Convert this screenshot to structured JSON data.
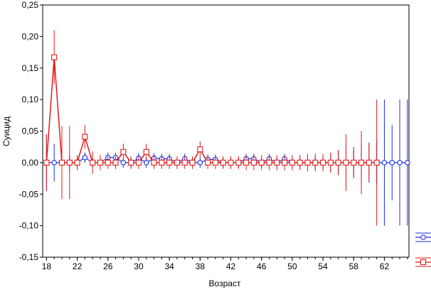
{
  "chart_data": {
    "type": "line",
    "title": "",
    "xlabel": "Возраст",
    "ylabel": "Суицид",
    "xlim": [
      17.5,
      65.2
    ],
    "ylim": [
      -0.15,
      0.25
    ],
    "grid": false,
    "legend": "right",
    "x_ticks": [
      "18",
      "22",
      "26",
      "30",
      "34",
      "38",
      "42",
      "46",
      "50",
      "54",
      "58",
      "62"
    ],
    "y_ticks": [
      "-0,15",
      "-0,10",
      "-0,05",
      "0,00",
      "0,05",
      "0,10",
      "0,15",
      "0,20",
      "0,25"
    ],
    "series": [
      {
        "marker": "circle",
        "color": "#1a2ee0",
        "points": [
          {
            "x": 18,
            "y": 0.0,
            "lo": -0.045,
            "hi": 0.045
          },
          {
            "x": 19,
            "y": 0.0,
            "lo": -0.03,
            "hi": 0.03
          },
          {
            "x": 20,
            "y": 0.0,
            "lo": -0.012,
            "hi": 0.012
          },
          {
            "x": 21,
            "y": 0.0,
            "lo": -0.012,
            "hi": 0.012
          },
          {
            "x": 22,
            "y": 0.0,
            "lo": -0.01,
            "hi": 0.01
          },
          {
            "x": 23,
            "y": 0.008,
            "lo": 0.0,
            "hi": 0.016
          },
          {
            "x": 24,
            "y": 0.0,
            "lo": -0.008,
            "hi": 0.008
          },
          {
            "x": 25,
            "y": 0.0,
            "lo": -0.008,
            "hi": 0.008
          },
          {
            "x": 26,
            "y": 0.008,
            "lo": 0.0,
            "hi": 0.016
          },
          {
            "x": 27,
            "y": 0.008,
            "lo": 0.0,
            "hi": 0.016
          },
          {
            "x": 28,
            "y": 0.0,
            "lo": -0.008,
            "hi": 0.008
          },
          {
            "x": 29,
            "y": 0.0,
            "lo": -0.008,
            "hi": 0.008
          },
          {
            "x": 30,
            "y": 0.007,
            "lo": -0.001,
            "hi": 0.015
          },
          {
            "x": 31,
            "y": 0.0,
            "lo": -0.008,
            "hi": 0.008
          },
          {
            "x": 32,
            "y": 0.007,
            "lo": -0.001,
            "hi": 0.015
          },
          {
            "x": 33,
            "y": 0.006,
            "lo": -0.002,
            "hi": 0.014
          },
          {
            "x": 34,
            "y": 0.006,
            "lo": -0.002,
            "hi": 0.014
          },
          {
            "x": 35,
            "y": 0.0,
            "lo": -0.008,
            "hi": 0.008
          },
          {
            "x": 36,
            "y": 0.006,
            "lo": -0.002,
            "hi": 0.014
          },
          {
            "x": 37,
            "y": 0.0,
            "lo": -0.008,
            "hi": 0.008
          },
          {
            "x": 38,
            "y": 0.0,
            "lo": -0.008,
            "hi": 0.008
          },
          {
            "x": 39,
            "y": 0.005,
            "lo": -0.003,
            "hi": 0.013
          },
          {
            "x": 40,
            "y": 0.005,
            "lo": -0.003,
            "hi": 0.013
          },
          {
            "x": 41,
            "y": 0.0,
            "lo": -0.008,
            "hi": 0.008
          },
          {
            "x": 42,
            "y": 0.0,
            "lo": -0.008,
            "hi": 0.008
          },
          {
            "x": 43,
            "y": 0.0,
            "lo": -0.008,
            "hi": 0.008
          },
          {
            "x": 44,
            "y": 0.006,
            "lo": -0.002,
            "hi": 0.014
          },
          {
            "x": 45,
            "y": 0.006,
            "lo": -0.002,
            "hi": 0.014
          },
          {
            "x": 46,
            "y": 0.0,
            "lo": -0.008,
            "hi": 0.008
          },
          {
            "x": 47,
            "y": 0.006,
            "lo": -0.002,
            "hi": 0.014
          },
          {
            "x": 48,
            "y": 0.0,
            "lo": -0.008,
            "hi": 0.008
          },
          {
            "x": 49,
            "y": 0.006,
            "lo": -0.002,
            "hi": 0.014
          },
          {
            "x": 50,
            "y": 0.0,
            "lo": -0.008,
            "hi": 0.008
          },
          {
            "x": 51,
            "y": 0.0,
            "lo": -0.008,
            "hi": 0.008
          },
          {
            "x": 52,
            "y": 0.0,
            "lo": -0.008,
            "hi": 0.008
          },
          {
            "x": 53,
            "y": 0.0,
            "lo": -0.01,
            "hi": 0.01
          },
          {
            "x": 54,
            "y": 0.0,
            "lo": -0.01,
            "hi": 0.01
          },
          {
            "x": 55,
            "y": 0.0,
            "lo": -0.015,
            "hi": 0.015
          },
          {
            "x": 56,
            "y": 0.0,
            "lo": -0.02,
            "hi": 0.02
          },
          {
            "x": 57,
            "y": 0.0,
            "lo": -0.025,
            "hi": 0.025
          },
          {
            "x": 58,
            "y": 0.0,
            "lo": -0.025,
            "hi": 0.025
          },
          {
            "x": 59,
            "y": 0.0,
            "lo": -0.03,
            "hi": 0.03
          },
          {
            "x": 60,
            "y": 0.0,
            "lo": -0.032,
            "hi": 0.032
          },
          {
            "x": 61,
            "y": 0.0,
            "lo": -0.035,
            "hi": 0.035
          },
          {
            "x": 62,
            "y": 0.0,
            "lo": -0.1,
            "hi": 0.1
          },
          {
            "x": 63,
            "y": 0.0,
            "lo": -0.06,
            "hi": 0.06
          },
          {
            "x": 64,
            "y": 0.0,
            "lo": -0.1,
            "hi": 0.1
          },
          {
            "x": 65,
            "y": 0.0,
            "lo": -0.1,
            "hi": 0.1
          }
        ]
      },
      {
        "marker": "square",
        "color": "#e01a1a",
        "points": [
          {
            "x": 18,
            "y": 0.0,
            "lo": -0.045,
            "hi": 0.045
          },
          {
            "x": 19,
            "y": 0.167,
            "lo": 0.125,
            "hi": 0.21
          },
          {
            "x": 20,
            "y": 0.0,
            "lo": -0.058,
            "hi": 0.058
          },
          {
            "x": 21,
            "y": 0.0,
            "lo": -0.058,
            "hi": 0.058
          },
          {
            "x": 22,
            "y": 0.0,
            "lo": -0.012,
            "hi": 0.012
          },
          {
            "x": 23,
            "y": 0.041,
            "lo": 0.022,
            "hi": 0.06
          },
          {
            "x": 24,
            "y": 0.0,
            "lo": -0.018,
            "hi": 0.018
          },
          {
            "x": 25,
            "y": 0.0,
            "lo": -0.012,
            "hi": 0.012
          },
          {
            "x": 26,
            "y": 0.0,
            "lo": -0.01,
            "hi": 0.01
          },
          {
            "x": 27,
            "y": 0.0,
            "lo": -0.01,
            "hi": 0.01
          },
          {
            "x": 28,
            "y": 0.017,
            "lo": 0.004,
            "hi": 0.03
          },
          {
            "x": 29,
            "y": 0.0,
            "lo": -0.01,
            "hi": 0.01
          },
          {
            "x": 30,
            "y": 0.0,
            "lo": -0.01,
            "hi": 0.01
          },
          {
            "x": 31,
            "y": 0.017,
            "lo": 0.004,
            "hi": 0.03
          },
          {
            "x": 32,
            "y": 0.0,
            "lo": -0.01,
            "hi": 0.01
          },
          {
            "x": 33,
            "y": 0.0,
            "lo": -0.01,
            "hi": 0.01
          },
          {
            "x": 34,
            "y": 0.0,
            "lo": -0.01,
            "hi": 0.01
          },
          {
            "x": 35,
            "y": 0.0,
            "lo": -0.01,
            "hi": 0.01
          },
          {
            "x": 36,
            "y": 0.0,
            "lo": -0.01,
            "hi": 0.01
          },
          {
            "x": 37,
            "y": 0.0,
            "lo": -0.01,
            "hi": 0.01
          },
          {
            "x": 38,
            "y": 0.021,
            "lo": 0.008,
            "hi": 0.034
          },
          {
            "x": 39,
            "y": 0.0,
            "lo": -0.01,
            "hi": 0.01
          },
          {
            "x": 40,
            "y": 0.0,
            "lo": -0.01,
            "hi": 0.01
          },
          {
            "x": 41,
            "y": 0.0,
            "lo": -0.01,
            "hi": 0.01
          },
          {
            "x": 42,
            "y": 0.0,
            "lo": -0.01,
            "hi": 0.01
          },
          {
            "x": 43,
            "y": 0.0,
            "lo": -0.01,
            "hi": 0.01
          },
          {
            "x": 44,
            "y": 0.0,
            "lo": -0.012,
            "hi": 0.012
          },
          {
            "x": 45,
            "y": 0.0,
            "lo": -0.012,
            "hi": 0.012
          },
          {
            "x": 46,
            "y": 0.0,
            "lo": -0.012,
            "hi": 0.012
          },
          {
            "x": 47,
            "y": 0.0,
            "lo": -0.012,
            "hi": 0.012
          },
          {
            "x": 48,
            "y": 0.0,
            "lo": -0.012,
            "hi": 0.012
          },
          {
            "x": 49,
            "y": 0.0,
            "lo": -0.012,
            "hi": 0.012
          },
          {
            "x": 50,
            "y": 0.0,
            "lo": -0.012,
            "hi": 0.012
          },
          {
            "x": 51,
            "y": 0.0,
            "lo": -0.012,
            "hi": 0.012
          },
          {
            "x": 52,
            "y": 0.0,
            "lo": -0.014,
            "hi": 0.014
          },
          {
            "x": 53,
            "y": 0.0,
            "lo": -0.014,
            "hi": 0.014
          },
          {
            "x": 54,
            "y": 0.0,
            "lo": -0.014,
            "hi": 0.014
          },
          {
            "x": 55,
            "y": 0.0,
            "lo": -0.016,
            "hi": 0.016
          },
          {
            "x": 56,
            "y": 0.0,
            "lo": -0.02,
            "hi": 0.02
          },
          {
            "x": 57,
            "y": 0.0,
            "lo": -0.045,
            "hi": 0.045
          },
          {
            "x": 58,
            "y": 0.0,
            "lo": -0.02,
            "hi": 0.02
          },
          {
            "x": 59,
            "y": 0.0,
            "lo": -0.05,
            "hi": 0.05
          },
          {
            "x": 60,
            "y": 0.0,
            "lo": -0.03,
            "hi": 0.03
          },
          {
            "x": 61,
            "y": 0.0,
            "lo": -0.1,
            "hi": 0.1
          }
        ]
      }
    ]
  }
}
